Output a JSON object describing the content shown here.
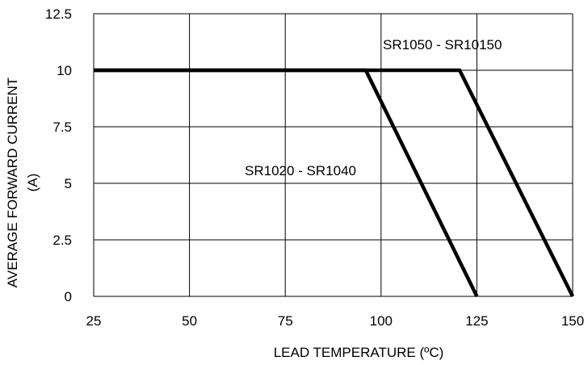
{
  "chart_data": {
    "type": "line",
    "title": "",
    "xlabel": "LEAD TEMPERATURE (ºC)",
    "ylabel": "AVERAGE FORWARD CURRENT",
    "ylabel_unit": "(A)",
    "xlim": [
      25,
      150
    ],
    "ylim": [
      0,
      12.5
    ],
    "xticks": [
      25,
      50,
      75,
      100,
      125,
      150
    ],
    "yticks": [
      0,
      2.5,
      5,
      7.5,
      10,
      12.5
    ],
    "xtick_labels": [
      "25",
      "50",
      "75",
      "100",
      "125",
      "150"
    ],
    "ytick_labels": [
      "0",
      "2.5",
      "5",
      "7.5",
      "10",
      "12.5"
    ],
    "grid": true,
    "series": [
      {
        "name": "SR1020 - SR1040",
        "x": [
          25,
          96,
          125
        ],
        "y": [
          10,
          10,
          0
        ]
      },
      {
        "name": "SR1050 - SR10150",
        "x": [
          25,
          120.5,
          150
        ],
        "y": [
          10,
          10,
          0
        ]
      }
    ]
  }
}
